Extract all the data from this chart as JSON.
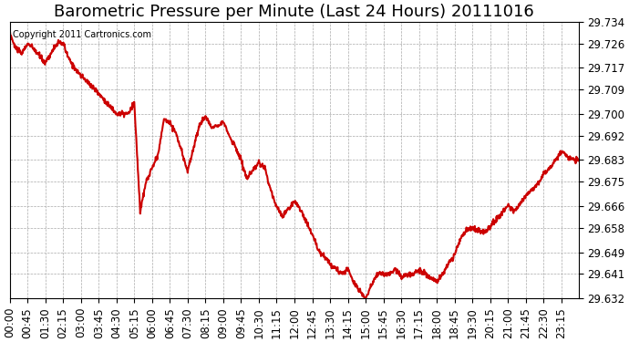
{
  "title": "Barometric Pressure per Minute (Last 24 Hours) 20111016",
  "copyright_text": "Copyright 2011 Cartronics.com",
  "line_color": "#cc0000",
  "background_color": "#ffffff",
  "grid_color": "#aaaaaa",
  "ylim": [
    29.632,
    29.734
  ],
  "yticks": [
    29.632,
    29.641,
    29.649,
    29.658,
    29.666,
    29.675,
    29.683,
    29.692,
    29.7,
    29.709,
    29.717,
    29.726,
    29.734
  ],
  "xtick_labels": [
    "00:00",
    "00:45",
    "01:30",
    "02:15",
    "03:00",
    "03:45",
    "04:30",
    "05:15",
    "06:00",
    "06:45",
    "07:30",
    "08:15",
    "09:00",
    "09:45",
    "10:30",
    "11:15",
    "12:00",
    "12:45",
    "13:30",
    "14:15",
    "15:00",
    "15:45",
    "16:30",
    "17:15",
    "18:00",
    "18:45",
    "19:30",
    "20:15",
    "21:00",
    "21:45",
    "22:30",
    "23:15"
  ],
  "title_fontsize": 13,
  "tick_fontsize": 8.5,
  "line_width": 1.5,
  "control_x": [
    0,
    0.2,
    0.5,
    0.75,
    1.0,
    1.5,
    2.0,
    2.25,
    2.5,
    3.0,
    3.5,
    4.0,
    4.5,
    5.0,
    5.25,
    5.5,
    5.75,
    6.0,
    6.25,
    6.5,
    6.75,
    7.0,
    7.5,
    8.0,
    8.25,
    8.5,
    9.0,
    9.25,
    9.5,
    9.75,
    10.0,
    10.25,
    10.5,
    10.75,
    11.0,
    11.25,
    11.5,
    12.0,
    12.25,
    12.5,
    12.75,
    13.0,
    13.5,
    14.0,
    14.25,
    14.5,
    15.0,
    15.25,
    15.5,
    15.75,
    16.0,
    16.25,
    16.5,
    17.0,
    17.25,
    17.5,
    18.0,
    18.25,
    18.5,
    18.75,
    19.0,
    19.25,
    19.5,
    20.0,
    20.5,
    21.0,
    21.25,
    21.5,
    21.75,
    22.0,
    22.25,
    22.5,
    22.75,
    23.0,
    23.25,
    23.75
  ],
  "control_y": [
    29.73,
    29.725,
    29.722,
    29.726,
    29.724,
    29.719,
    29.726,
    29.726,
    29.72,
    29.714,
    29.71,
    29.705,
    29.7,
    29.7,
    29.704,
    29.664,
    29.675,
    29.68,
    29.685,
    29.698,
    29.697,
    29.693,
    29.679,
    29.696,
    29.699,
    29.695,
    29.697,
    29.692,
    29.688,
    29.683,
    29.676,
    29.679,
    29.682,
    29.68,
    29.672,
    29.666,
    29.662,
    29.668,
    29.665,
    29.66,
    29.656,
    29.65,
    29.645,
    29.641,
    29.643,
    29.638,
    29.632,
    29.637,
    29.641,
    29.641,
    29.641,
    29.643,
    29.64,
    29.641,
    29.643,
    29.641,
    29.638,
    29.641,
    29.645,
    29.648,
    29.654,
    29.657,
    29.658,
    29.656,
    29.661,
    29.666,
    29.664,
    29.667,
    29.67,
    29.672,
    29.674,
    29.678,
    29.68,
    29.683,
    29.686,
    29.683
  ]
}
